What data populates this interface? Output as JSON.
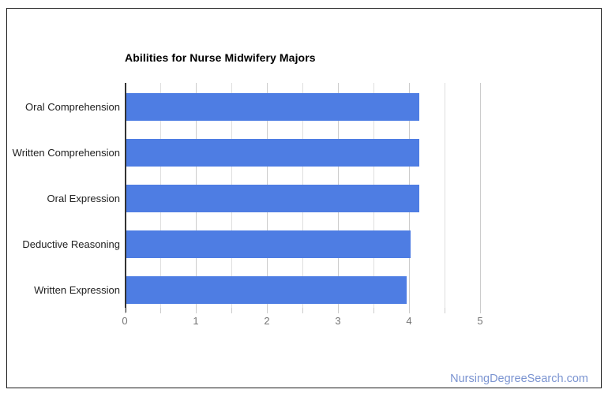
{
  "page": {
    "background_color": "#ffffff",
    "frame_border_color": "#1c1c1c"
  },
  "chart_data": {
    "type": "bar",
    "orientation": "horizontal",
    "title": "Abilities for Nurse Midwifery Majors",
    "categories": [
      "Oral Comprehension",
      "Written Comprehension",
      "Oral Expression",
      "Deductive Reasoning",
      "Written Expression"
    ],
    "values": [
      4.12,
      4.12,
      4.12,
      4.0,
      3.94
    ],
    "xlim": [
      0,
      5
    ],
    "x_ticks": [
      0,
      1,
      2,
      3,
      4,
      5
    ],
    "minor_tick_step": 0.5,
    "grid": true,
    "legend": "none",
    "bar_color": "#4e7de3",
    "major_grid_color": "#cccccc",
    "minor_grid_color": "#dedede",
    "baseline_color": "#333333",
    "tick_label_color": "#757575",
    "category_label_color": "#212121",
    "title_color": "#000000"
  },
  "footer": {
    "watermark": "NursingDegreeSearch.com",
    "color": "#7b94d1"
  }
}
